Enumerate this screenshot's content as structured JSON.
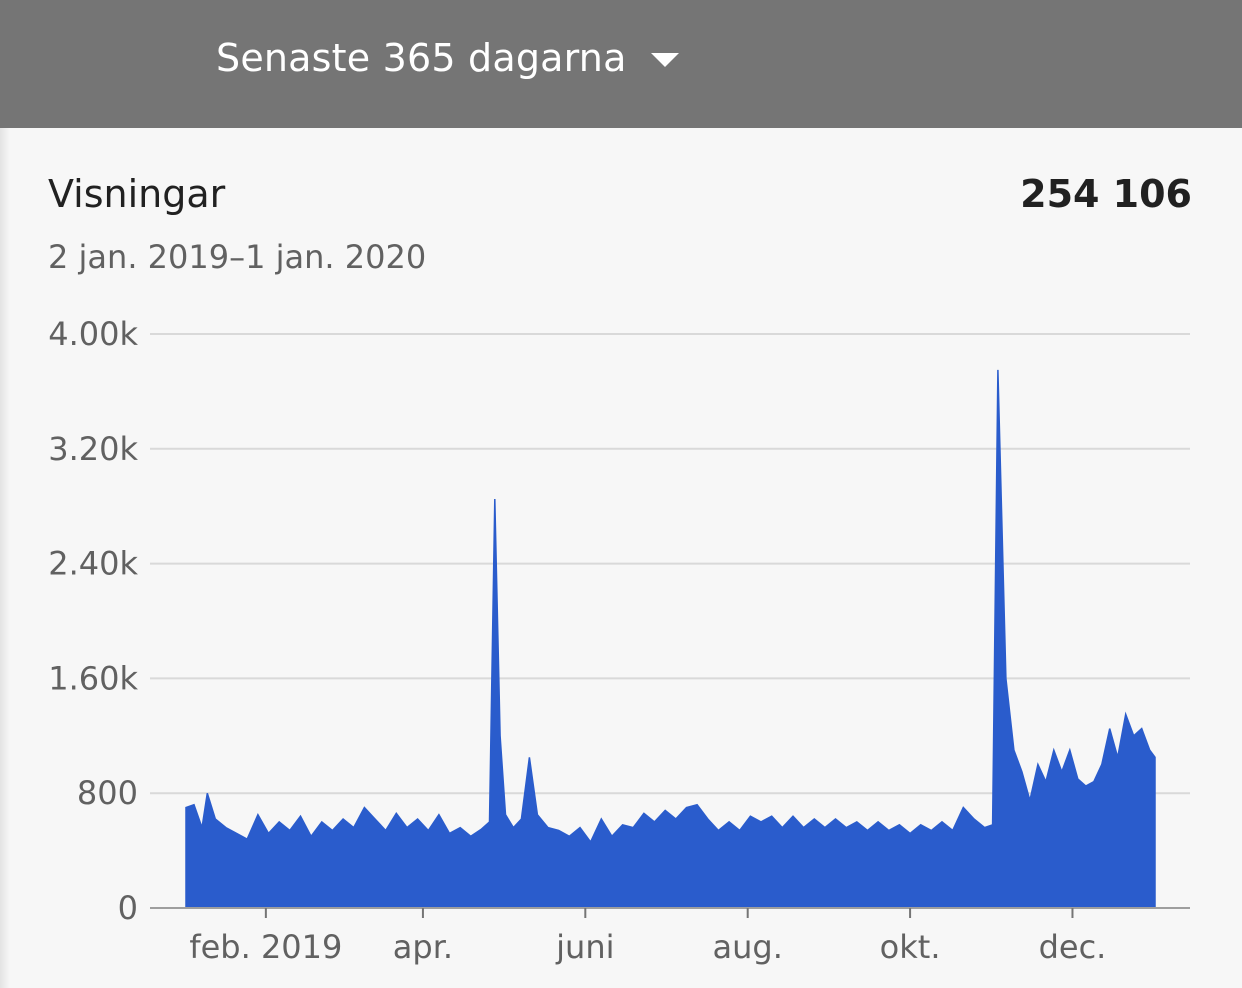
{
  "header": {
    "period_label": "Senaste 365 dagarna",
    "dropdown_icon": "caret-down-icon",
    "background": "#757575"
  },
  "metric": {
    "name": "Visningar",
    "total": "254 106",
    "date_range": "2 jan. 2019–1 jan. 2020"
  },
  "chart_data": {
    "type": "area",
    "title": "Visningar",
    "xlabel": "",
    "ylabel": "",
    "ylim": [
      0,
      4000
    ],
    "y_ticks": [
      {
        "value": 0,
        "label": "0"
      },
      {
        "value": 800,
        "label": "800"
      },
      {
        "value": 1600,
        "label": "1.60k"
      },
      {
        "value": 2400,
        "label": "2.40k"
      },
      {
        "value": 3200,
        "label": "3.20k"
      },
      {
        "value": 4000,
        "label": "4.00k"
      }
    ],
    "x_range": [
      "2019-01-02",
      "2020-01-01"
    ],
    "x_ticks": [
      {
        "date": "2019-02-01",
        "label": "feb. 2019"
      },
      {
        "date": "2019-04-01",
        "label": "apr."
      },
      {
        "date": "2019-06-01",
        "label": "juni"
      },
      {
        "date": "2019-08-01",
        "label": "aug."
      },
      {
        "date": "2019-10-01",
        "label": "okt."
      },
      {
        "date": "2019-12-01",
        "label": "dec."
      }
    ],
    "grid": true,
    "series": [
      {
        "color": "#2a5ccc",
        "points": [
          [
            "2019-01-02",
            700
          ],
          [
            "2019-01-05",
            720
          ],
          [
            "2019-01-08",
            560
          ],
          [
            "2019-01-10",
            800
          ],
          [
            "2019-01-13",
            620
          ],
          [
            "2019-01-17",
            560
          ],
          [
            "2019-01-21",
            520
          ],
          [
            "2019-01-25",
            480
          ],
          [
            "2019-01-29",
            650
          ],
          [
            "2019-02-02",
            520
          ],
          [
            "2019-02-06",
            600
          ],
          [
            "2019-02-10",
            540
          ],
          [
            "2019-02-14",
            640
          ],
          [
            "2019-02-18",
            500
          ],
          [
            "2019-02-22",
            600
          ],
          [
            "2019-02-26",
            540
          ],
          [
            "2019-03-02",
            620
          ],
          [
            "2019-03-06",
            560
          ],
          [
            "2019-03-10",
            700
          ],
          [
            "2019-03-14",
            620
          ],
          [
            "2019-03-18",
            540
          ],
          [
            "2019-03-22",
            660
          ],
          [
            "2019-03-26",
            560
          ],
          [
            "2019-03-30",
            620
          ],
          [
            "2019-04-03",
            540
          ],
          [
            "2019-04-07",
            650
          ],
          [
            "2019-04-11",
            520
          ],
          [
            "2019-04-15",
            560
          ],
          [
            "2019-04-19",
            500
          ],
          [
            "2019-04-23",
            550
          ],
          [
            "2019-04-26",
            600
          ],
          [
            "2019-04-28",
            2850
          ],
          [
            "2019-04-30",
            1200
          ],
          [
            "2019-05-02",
            650
          ],
          [
            "2019-05-05",
            560
          ],
          [
            "2019-05-08",
            620
          ],
          [
            "2019-05-11",
            1050
          ],
          [
            "2019-05-14",
            650
          ],
          [
            "2019-05-18",
            560
          ],
          [
            "2019-05-22",
            540
          ],
          [
            "2019-05-26",
            500
          ],
          [
            "2019-05-30",
            560
          ],
          [
            "2019-06-03",
            460
          ],
          [
            "2019-06-07",
            620
          ],
          [
            "2019-06-11",
            500
          ],
          [
            "2019-06-15",
            580
          ],
          [
            "2019-06-19",
            560
          ],
          [
            "2019-06-23",
            660
          ],
          [
            "2019-06-27",
            600
          ],
          [
            "2019-07-01",
            680
          ],
          [
            "2019-07-05",
            620
          ],
          [
            "2019-07-09",
            700
          ],
          [
            "2019-07-13",
            720
          ],
          [
            "2019-07-17",
            620
          ],
          [
            "2019-07-21",
            540
          ],
          [
            "2019-07-25",
            600
          ],
          [
            "2019-07-29",
            540
          ],
          [
            "2019-08-02",
            640
          ],
          [
            "2019-08-06",
            600
          ],
          [
            "2019-08-10",
            640
          ],
          [
            "2019-08-14",
            560
          ],
          [
            "2019-08-18",
            640
          ],
          [
            "2019-08-22",
            560
          ],
          [
            "2019-08-26",
            620
          ],
          [
            "2019-08-30",
            560
          ],
          [
            "2019-09-03",
            620
          ],
          [
            "2019-09-07",
            560
          ],
          [
            "2019-09-11",
            600
          ],
          [
            "2019-09-15",
            540
          ],
          [
            "2019-09-19",
            600
          ],
          [
            "2019-09-23",
            540
          ],
          [
            "2019-09-27",
            580
          ],
          [
            "2019-10-01",
            520
          ],
          [
            "2019-10-05",
            580
          ],
          [
            "2019-10-09",
            540
          ],
          [
            "2019-10-13",
            600
          ],
          [
            "2019-10-17",
            540
          ],
          [
            "2019-10-21",
            700
          ],
          [
            "2019-10-25",
            620
          ],
          [
            "2019-10-29",
            560
          ],
          [
            "2019-11-01",
            580
          ],
          [
            "2019-11-03",
            3750
          ],
          [
            "2019-11-06",
            1600
          ],
          [
            "2019-11-09",
            1100
          ],
          [
            "2019-11-12",
            950
          ],
          [
            "2019-11-15",
            750
          ],
          [
            "2019-11-18",
            1000
          ],
          [
            "2019-11-21",
            880
          ],
          [
            "2019-11-24",
            1100
          ],
          [
            "2019-11-27",
            950
          ],
          [
            "2019-11-30",
            1100
          ],
          [
            "2019-12-03",
            900
          ],
          [
            "2019-12-06",
            850
          ],
          [
            "2019-12-09",
            880
          ],
          [
            "2019-12-12",
            1000
          ],
          [
            "2019-12-15",
            1250
          ],
          [
            "2019-12-18",
            1050
          ],
          [
            "2019-12-21",
            1350
          ],
          [
            "2019-12-24",
            1200
          ],
          [
            "2019-12-27",
            1250
          ],
          [
            "2019-12-30",
            1100
          ],
          [
            "2020-01-01",
            1050
          ]
        ]
      }
    ]
  }
}
